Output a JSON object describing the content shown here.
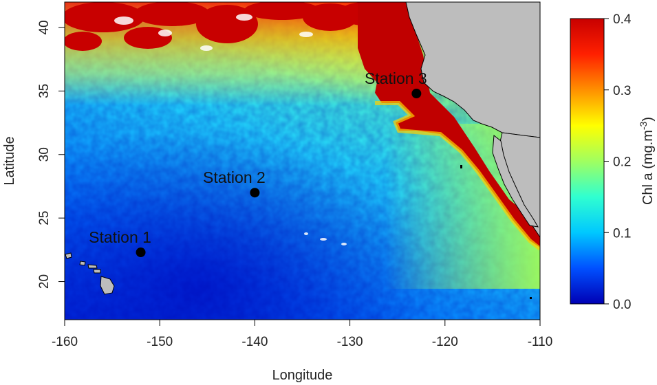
{
  "map": {
    "xlabel": "Longitude",
    "ylabel": "Latitude",
    "xlim": [
      -160,
      -110
    ],
    "ylim": [
      17,
      42
    ],
    "x_ticks": [
      -160,
      -150,
      -140,
      -130,
      -120,
      -110
    ],
    "x_tick_labels": [
      "-160",
      "-150",
      "-140",
      "-130",
      "-120",
      "-110"
    ],
    "y_ticks": [
      20,
      25,
      30,
      35,
      40
    ],
    "y_tick_labels": [
      "20",
      "25",
      "30",
      "35",
      "40"
    ],
    "colors": {
      "land": "#bdbdbd",
      "coast": "#000000"
    }
  },
  "stations": [
    {
      "label": "Station 1",
      "lon": -152,
      "lat": 22.3
    },
    {
      "label": "Station 2",
      "lon": -140,
      "lat": 27.0
    },
    {
      "label": "Station 3",
      "lon": -123,
      "lat": 34.8
    }
  ],
  "colorbar": {
    "title": "Chl a (mg.m",
    "title_sup": "-3",
    "title_close": ")",
    "range": [
      0.0,
      0.4
    ],
    "ticks": [
      0.0,
      0.1,
      0.2,
      0.3,
      0.4
    ],
    "tick_labels": [
      "0.0",
      "0.1",
      "0.2",
      "0.3",
      "0.4"
    ],
    "colors": [
      "#0000b4",
      "#0050ff",
      "#00c8ff",
      "#30ffd0",
      "#a0ff60",
      "#ffff00",
      "#ff9000",
      "#ff2000",
      "#c80000"
    ]
  }
}
